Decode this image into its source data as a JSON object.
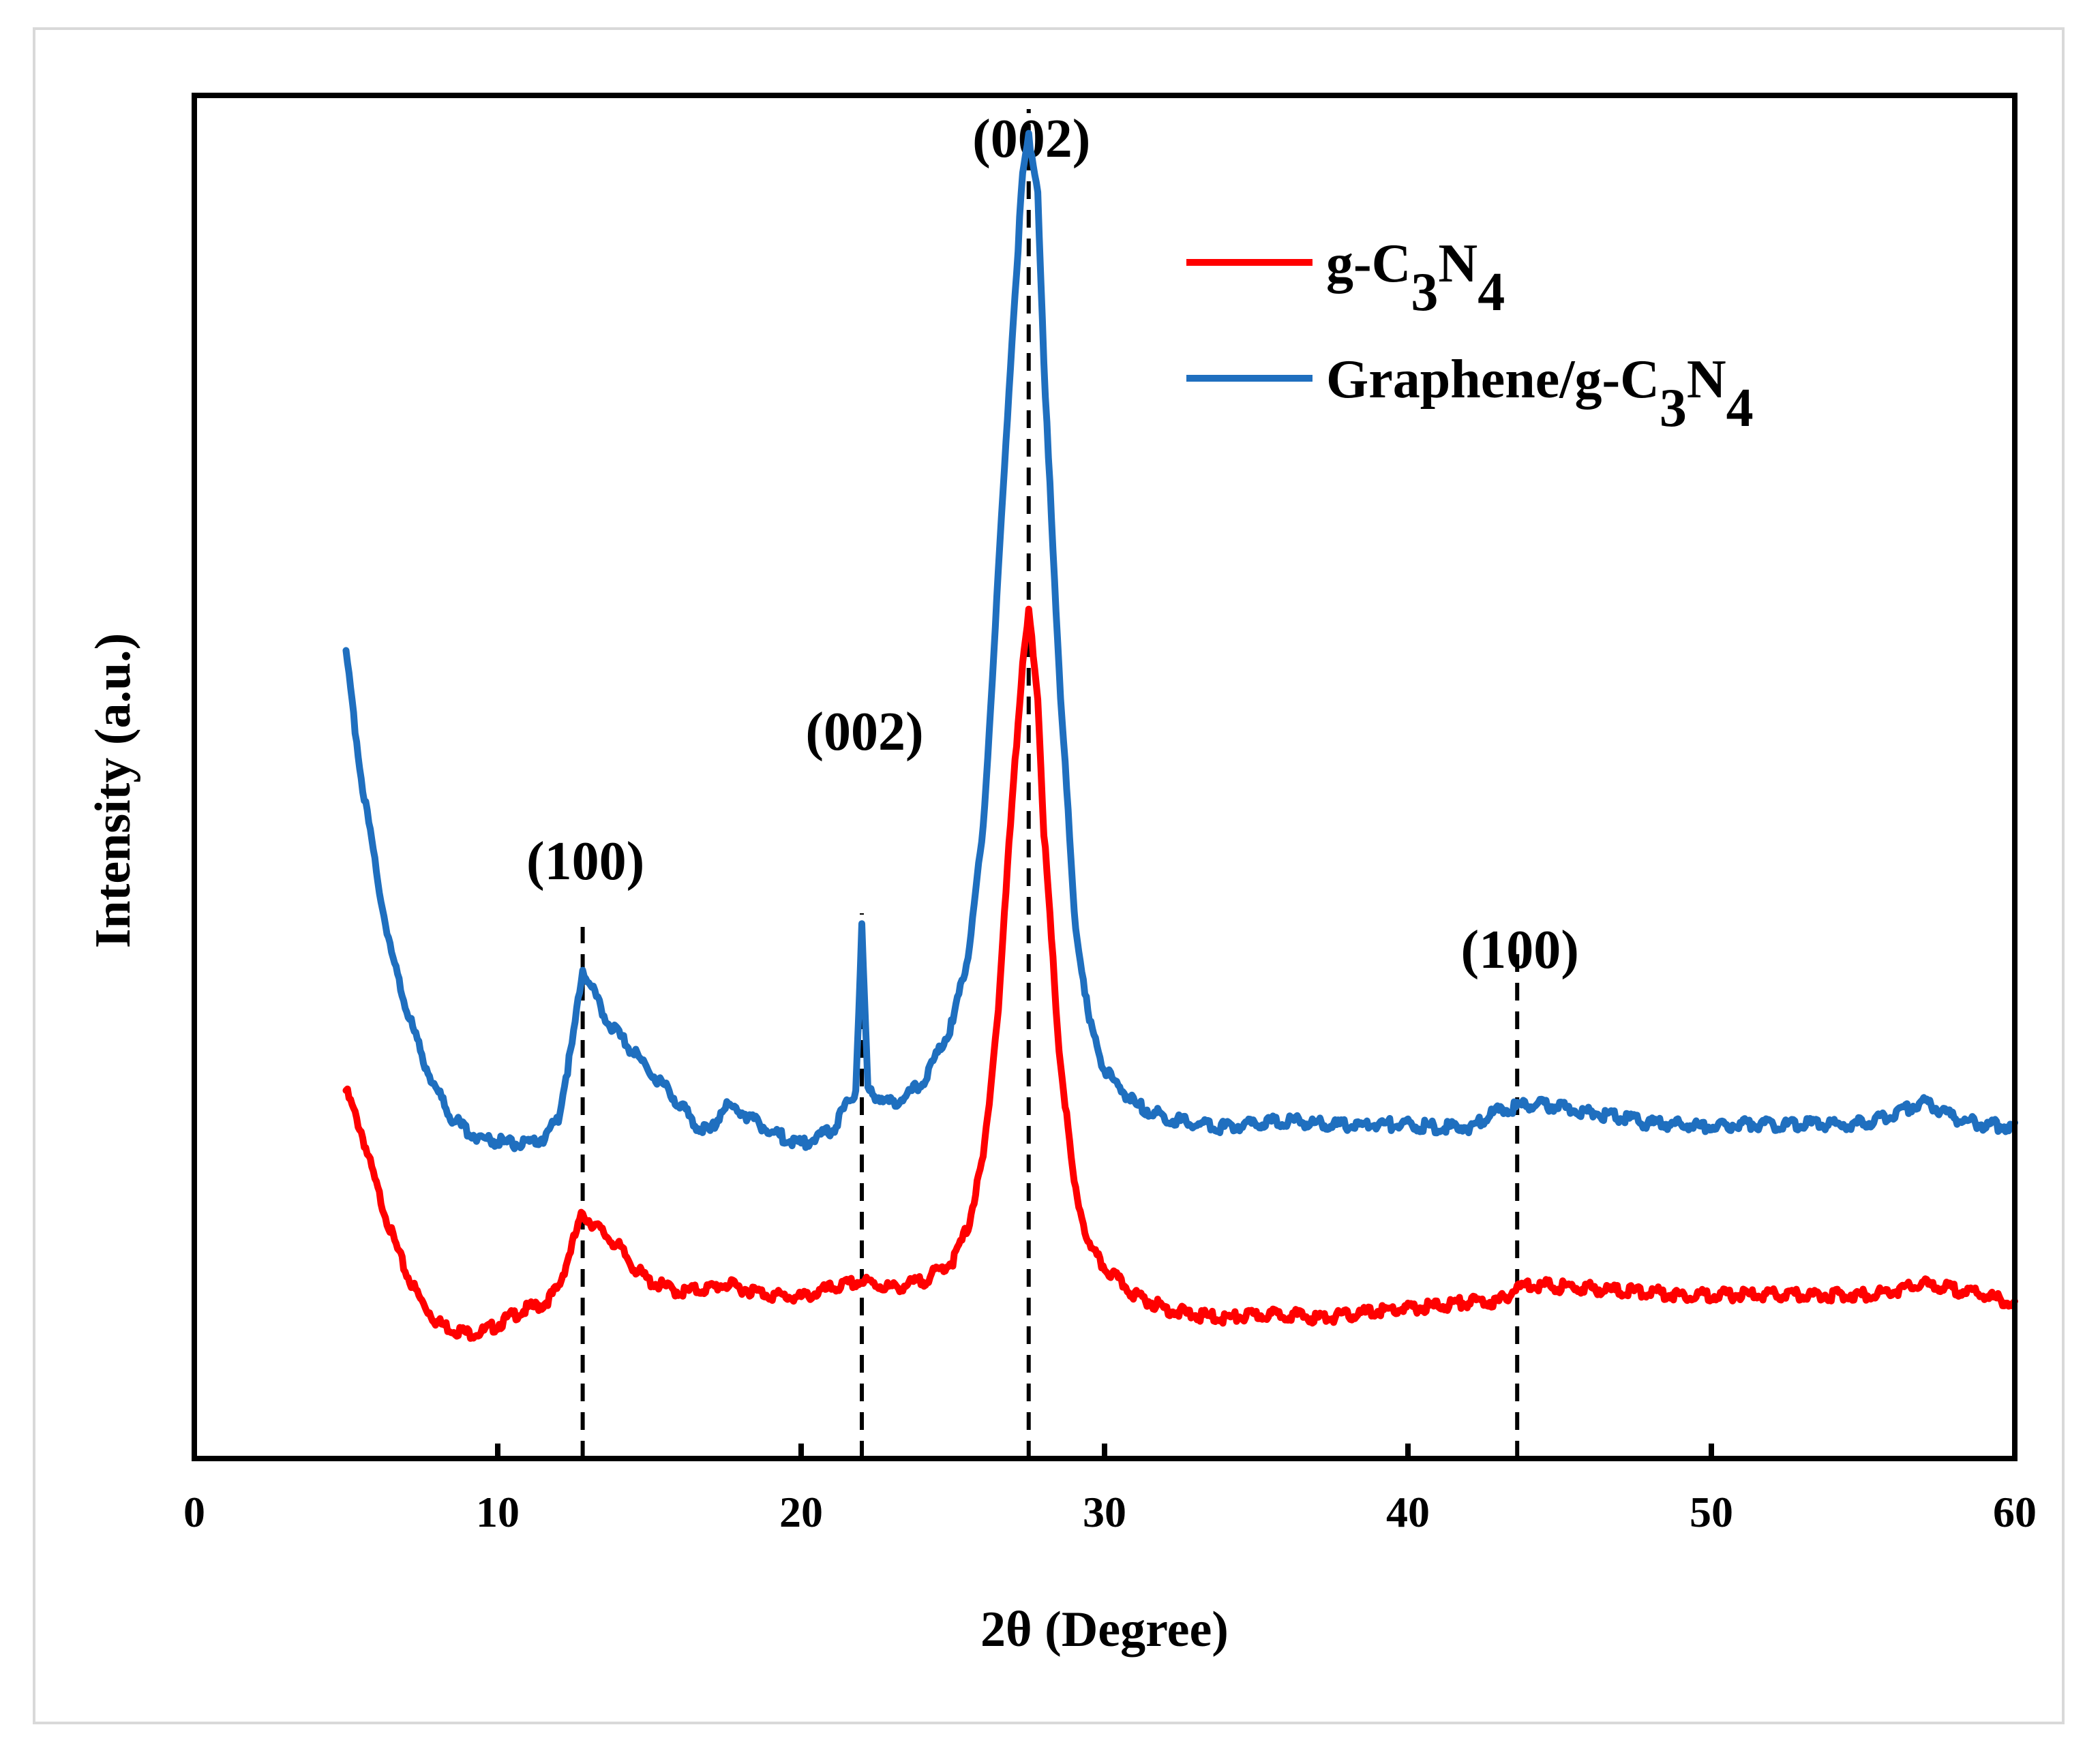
{
  "chart_data": {
    "type": "line",
    "title": "",
    "xlabel": "2θ (Degree)",
    "ylabel": "Intensity (a.u.)",
    "xlim": [
      0,
      60
    ],
    "ylim": [
      0,
      100
    ],
    "xticks": [
      "0",
      "10",
      "20",
      "30",
      "40",
      "50",
      "60"
    ],
    "grid": false,
    "legend_position": "top-right",
    "series": [
      {
        "name": "g-C3N4",
        "label_main": "g-C",
        "label_sub1": "3",
        "label_mid": "N",
        "label_sub2": "4",
        "color": "#ff0000",
        "x": [
          5,
          5.5,
          6,
          6.5,
          7,
          7.5,
          8,
          8.5,
          9,
          9.5,
          10,
          10.5,
          11,
          11.5,
          12,
          12.5,
          12.8,
          13,
          13.5,
          14,
          14.5,
          15,
          16,
          17,
          17.5,
          18,
          19,
          20,
          21,
          22,
          23,
          24,
          25,
          25.5,
          26,
          26.5,
          27,
          27.3,
          27.5,
          27.8,
          28,
          28.5,
          29,
          29.5,
          30,
          31,
          32,
          33,
          34,
          35,
          36,
          37,
          38,
          39,
          40,
          41,
          42,
          43,
          43.6,
          44,
          45,
          46,
          47,
          48,
          49,
          50,
          51,
          52,
          53,
          54,
          55,
          56,
          57,
          58,
          59,
          60
        ],
        "y": [
          27,
          24,
          20,
          16.5,
          13.5,
          11.5,
          10,
          9.5,
          9.2,
          9.3,
          9.8,
          10.5,
          11,
          11.3,
          12.5,
          16,
          18,
          17.5,
          16.5,
          15.5,
          14,
          13,
          12.2,
          12.5,
          12.8,
          12.5,
          12,
          11.8,
          12.5,
          13,
          12.5,
          13,
          14.5,
          17,
          22,
          33,
          50,
          58,
          62,
          56,
          46,
          30,
          20,
          15.5,
          14,
          12,
          11,
          10.5,
          10.3,
          10.5,
          10.6,
          10.3,
          10.5,
          10.8,
          11,
          11.2,
          11.5,
          11.5,
          12.5,
          12.8,
          12.6,
          12.5,
          12.3,
          12.2,
          12,
          12,
          12,
          12,
          12,
          12,
          12,
          12.3,
          12.8,
          12.4,
          12,
          11.3
        ]
      },
      {
        "name": "Graphene/g-C3N4",
        "label_main": "Graphene/g-C",
        "label_sub1": "3",
        "label_mid": "N",
        "label_sub2": "4",
        "color": "#1f6fbf",
        "x": [
          5,
          5.5,
          6,
          6.5,
          7,
          7.5,
          8,
          8.5,
          9,
          9.5,
          10,
          10.5,
          11,
          11.5,
          12,
          12.5,
          12.8,
          13,
          13.5,
          14,
          15,
          16,
          16.5,
          17,
          17.5,
          18,
          19,
          20,
          21,
          21.8,
          22,
          22.2,
          23,
          24,
          25,
          25.5,
          26,
          26.5,
          27,
          27.3,
          27.5,
          27.8,
          28,
          28.5,
          29,
          29.5,
          30,
          31,
          32,
          33,
          34,
          35,
          36,
          37,
          38,
          39,
          40,
          41,
          42,
          43,
          44,
          45,
          46,
          47,
          48,
          49,
          50,
          51,
          52,
          53,
          54,
          55,
          56,
          57,
          58,
          59,
          60
        ],
        "y": [
          59,
          50,
          43,
          37,
          33,
          29.5,
          27,
          25,
          24,
          23.5,
          23.3,
          23.1,
          23,
          23.5,
          25,
          31,
          36,
          35,
          32.5,
          31,
          28.5,
          26,
          24.5,
          24,
          26,
          25.5,
          24,
          23,
          24,
          27,
          39,
          27,
          26,
          27.5,
          32,
          37,
          46,
          65,
          84,
          94,
          97,
          93,
          80,
          58,
          40,
          32,
          28.5,
          26,
          25,
          24.5,
          24.3,
          24.6,
          24.8,
          24.6,
          24.4,
          24.5,
          24.5,
          24.3,
          24.3,
          25.5,
          26,
          25.8,
          25.4,
          25,
          24.6,
          24.5,
          24.3,
          24.6,
          24.5,
          24.5,
          24.5,
          24.6,
          25.2,
          26.2,
          25,
          24.5,
          24.3
        ]
      }
    ],
    "annotations": [
      {
        "text": "(100)",
        "x": 12.8,
        "line_top": 39
      },
      {
        "text": "(002)",
        "x": 22.0,
        "line_top": 40
      },
      {
        "text": "(002)",
        "x": 27.5,
        "line_top": 99
      },
      {
        "text": "(100)",
        "x": 43.6,
        "line_top": 37
      }
    ]
  }
}
